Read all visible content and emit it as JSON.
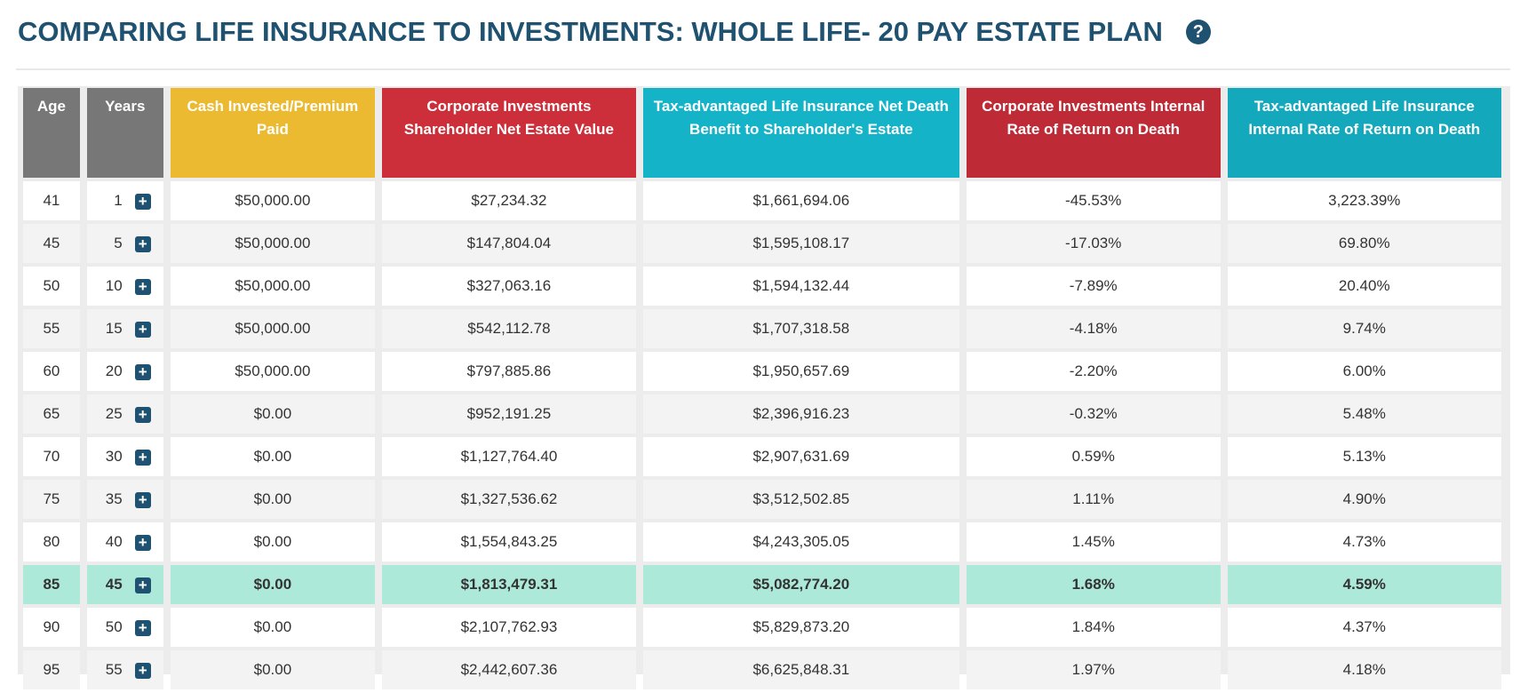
{
  "title": "COMPARING LIFE INSURANCE TO INVESTMENTS: WHOLE LIFE- 20 PAY ESTATE PLAN",
  "help_icon": "?",
  "expand_icon": "+",
  "columns": [
    {
      "label": "Age",
      "color": "#777777"
    },
    {
      "label": "Years",
      "color": "#777777"
    },
    {
      "label": "Cash Invested/Premium Paid",
      "color": "#ecba30"
    },
    {
      "label": "Corporate Investments Shareholder Net Estate Value",
      "color": "#cc2f3a"
    },
    {
      "label": "Tax-advantaged Life Insurance Net Death Benefit to Shareholder's Estate",
      "color": "#15b3c8"
    },
    {
      "label": "Corporate Investments Internal Rate of Return on Death",
      "color": "#be2b37"
    },
    {
      "label": "Tax-advantaged Life Insurance Internal Rate of Return on Death",
      "color": "#14a8bd"
    }
  ],
  "rows": [
    [
      "41",
      "1",
      "$50,000.00",
      "$27,234.32",
      "$1,661,694.06",
      "-45.53%",
      "3,223.39%"
    ],
    [
      "45",
      "5",
      "$50,000.00",
      "$147,804.04",
      "$1,595,108.17",
      "-17.03%",
      "69.80%"
    ],
    [
      "50",
      "10",
      "$50,000.00",
      "$327,063.16",
      "$1,594,132.44",
      "-7.89%",
      "20.40%"
    ],
    [
      "55",
      "15",
      "$50,000.00",
      "$542,112.78",
      "$1,707,318.58",
      "-4.18%",
      "9.74%"
    ],
    [
      "60",
      "20",
      "$50,000.00",
      "$797,885.86",
      "$1,950,657.69",
      "-2.20%",
      "6.00%"
    ],
    [
      "65",
      "25",
      "$0.00",
      "$952,191.25",
      "$2,396,916.23",
      "-0.32%",
      "5.48%"
    ],
    [
      "70",
      "30",
      "$0.00",
      "$1,127,764.40",
      "$2,907,631.69",
      "0.59%",
      "5.13%"
    ],
    [
      "75",
      "35",
      "$0.00",
      "$1,327,536.62",
      "$3,512,502.85",
      "1.11%",
      "4.90%"
    ],
    [
      "80",
      "40",
      "$0.00",
      "$1,554,843.25",
      "$4,243,305.05",
      "1.45%",
      "4.73%"
    ],
    [
      "85",
      "45",
      "$0.00",
      "$1,813,479.31",
      "$5,082,774.20",
      "1.68%",
      "4.59%"
    ],
    [
      "90",
      "50",
      "$0.00",
      "$2,107,762.93",
      "$5,829,873.20",
      "1.84%",
      "4.37%"
    ],
    [
      "95",
      "55",
      "$0.00",
      "$2,442,607.36",
      "$6,625,848.31",
      "1.97%",
      "4.18%"
    ]
  ],
  "highlighted_row_age": "85",
  "highlight_color": "#ade9d8"
}
